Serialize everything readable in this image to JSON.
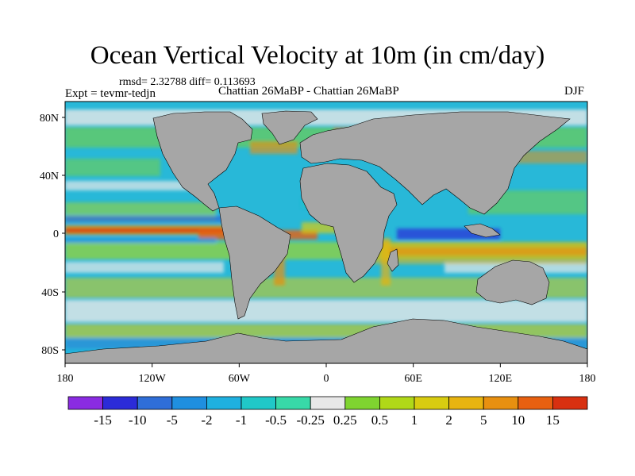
{
  "title": "Ocean Vertical Velocity at 10m (in cm/day)",
  "stats_text": "rmsd= 2.32788 diff= 0.113693",
  "left_label": "Expt = tevmr-tedjn",
  "center_label": "Chattian 26MaBP - Chattian 26MaBP",
  "right_label": "DJF",
  "lat_ticks": [
    "80N",
    "40N",
    "0",
    "40S",
    "80S"
  ],
  "lon_ticks": [
    "180",
    "120W",
    "60W",
    "0",
    "60E",
    "120E",
    "180"
  ],
  "colorbar": {
    "colors": [
      "#8a2be2",
      "#2b2bd8",
      "#2f6ed8",
      "#1f8fe0",
      "#1fb0e0",
      "#20c8c8",
      "#38d9a8",
      "#e8e8e8",
      "#7fd430",
      "#b0d818",
      "#d8cc10",
      "#e8b410",
      "#e89010",
      "#e86010",
      "#d83010"
    ],
    "labels": [
      "-15",
      "-10",
      "-5",
      "-2",
      "-1",
      "-0.5",
      "-0.25",
      "0.25",
      "0.5",
      "1",
      "2",
      "5",
      "10",
      "15"
    ]
  },
  "colors": {
    "land": "#a6a6a6",
    "ocean_base": "#28b8d8"
  }
}
